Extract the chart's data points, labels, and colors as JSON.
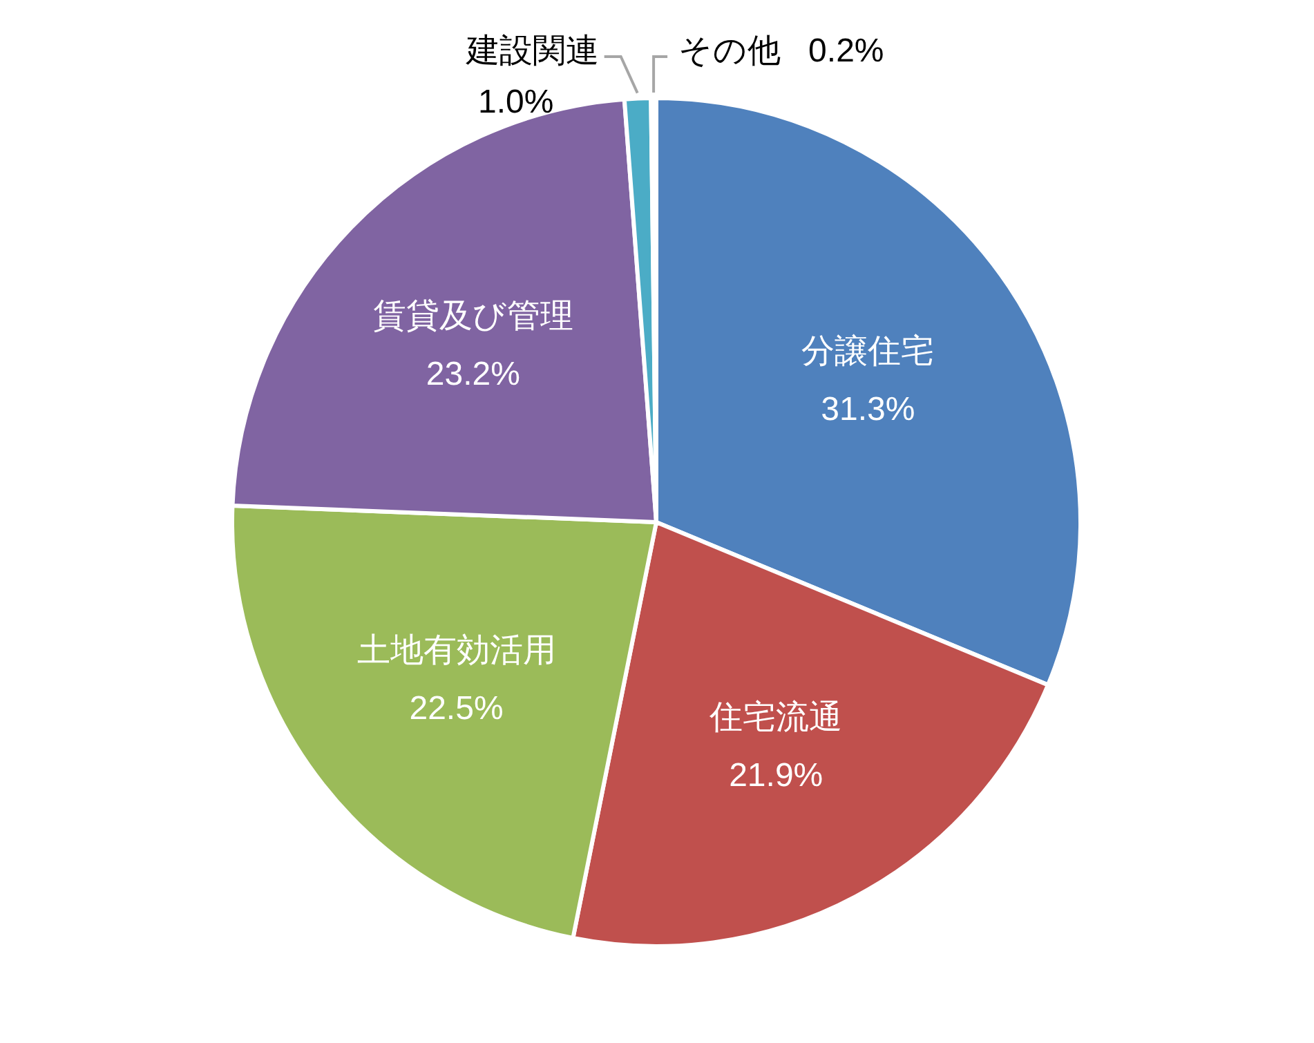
{
  "chart_data": {
    "type": "pie",
    "categories": [
      "分譲住宅",
      "住宅流通",
      "土地有効活用",
      "賃貸及び管理",
      "建設関連",
      "その他"
    ],
    "values": [
      31.3,
      21.9,
      22.5,
      23.2,
      1.0,
      0.2
    ],
    "colors": [
      "#4f81bd",
      "#c0504d",
      "#9bbb59",
      "#8064a2",
      "#4bacc6",
      "#ffffff"
    ],
    "value_labels": [
      "31.3%",
      "21.9%",
      "22.5%",
      "23.2%",
      "1.0%",
      "0.2%"
    ]
  }
}
